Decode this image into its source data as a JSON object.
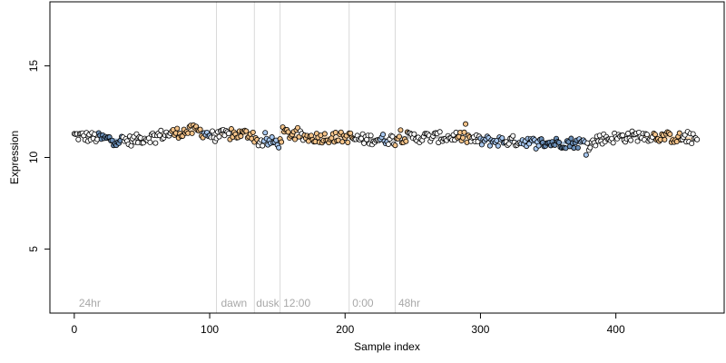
{
  "chart_data": {
    "type": "scatter",
    "title": "",
    "xlabel": "Sample index",
    "ylabel": "Expression",
    "xlim": [
      -18,
      480
    ],
    "ylim": [
      1.5,
      18.5
    ],
    "x_ticks": [
      0,
      100,
      200,
      300,
      400
    ],
    "y_ticks": [
      5,
      10,
      15
    ],
    "grid": false,
    "legend": "none",
    "colors": {
      "high": "#f5c48a",
      "mid": "#6b8fb8",
      "low": "#a8c8f0",
      "neutral": "#ffffff",
      "outline": "#000000",
      "divider": "#d9d9d9",
      "region_text": "#a8a8a8"
    },
    "region_lines": [
      105,
      133,
      152,
      203,
      237
    ],
    "region_labels": [
      {
        "x": 2,
        "text": "24hr"
      },
      {
        "x": 107,
        "text": "dawn"
      },
      {
        "x": 133,
        "text": "dusk"
      },
      {
        "x": 153,
        "text": "12:00"
      },
      {
        "x": 204,
        "text": "0:00"
      },
      {
        "x": 238,
        "text": "48hr"
      }
    ],
    "n_points": 461,
    "trend_segments": [
      {
        "x": [
          0,
          25
        ],
        "y": [
          11.2,
          11.0
        ]
      },
      {
        "x": [
          25,
          40
        ],
        "y": [
          11.0,
          10.9
        ]
      },
      {
        "x": [
          40,
          62
        ],
        "y": [
          10.9,
          11.2
        ]
      },
      {
        "x": [
          62,
          90
        ],
        "y": [
          11.2,
          11.5
        ]
      },
      {
        "x": [
          90,
          105
        ],
        "y": [
          11.5,
          11.1
        ]
      },
      {
        "x": [
          105,
          133
        ],
        "y": [
          11.2,
          11.3
        ]
      },
      {
        "x": [
          133,
          152
        ],
        "y": [
          10.9,
          10.8
        ]
      },
      {
        "x": [
          152,
          170
        ],
        "y": [
          11.4,
          11.1
        ]
      },
      {
        "x": [
          170,
          205
        ],
        "y": [
          11.1,
          11.1
        ]
      },
      {
        "x": [
          205,
          237
        ],
        "y": [
          11.0,
          11.0
        ]
      },
      {
        "x": [
          237,
          280
        ],
        "y": [
          11.1,
          11.1
        ]
      },
      {
        "x": [
          280,
          300
        ],
        "y": [
          11.2,
          10.9
        ]
      },
      {
        "x": [
          300,
          335
        ],
        "y": [
          10.9,
          10.9
        ]
      },
      {
        "x": [
          335,
          385
        ],
        "y": [
          10.8,
          10.8
        ]
      },
      {
        "x": [
          385,
          420
        ],
        "y": [
          11.0,
          11.2
        ]
      },
      {
        "x": [
          420,
          461
        ],
        "y": [
          11.2,
          11.0
        ]
      }
    ],
    "highlight_ranges": [
      {
        "x": [
          72,
          95
        ],
        "color": "high"
      },
      {
        "x": [
          115,
          135
        ],
        "color": "high"
      },
      {
        "x": [
          152,
          166
        ],
        "color": "high"
      },
      {
        "x": [
          170,
          206
        ],
        "color": "high"
      },
      {
        "x": [
          237,
          246
        ],
        "color": "high"
      },
      {
        "x": [
          283,
          292
        ],
        "color": "high"
      },
      {
        "x": [
          428,
          448
        ],
        "color": "high"
      },
      {
        "x": [
          18,
          35
        ],
        "color": "mid"
      },
      {
        "x": [
          345,
          372
        ],
        "color": "mid"
      },
      {
        "x": [
          94,
          100
        ],
        "color": "low"
      },
      {
        "x": [
          140,
          152
        ],
        "color": "low"
      },
      {
        "x": [
          185,
          192
        ],
        "color": "low"
      },
      {
        "x": [
          226,
          231
        ],
        "color": "low"
      },
      {
        "x": [
          300,
          318
        ],
        "color": "low"
      },
      {
        "x": [
          330,
          378
        ],
        "color": "low"
      }
    ]
  }
}
